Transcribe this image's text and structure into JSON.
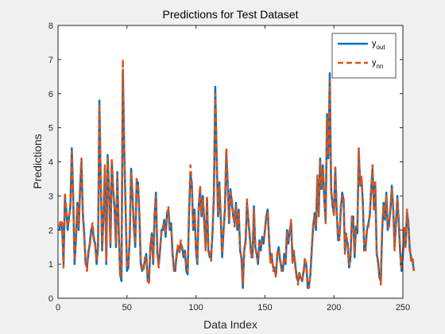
{
  "figure": {
    "background": "#f0f0f0",
    "axes_background": "#ffffff"
  },
  "chart_data": {
    "type": "line",
    "title": "Predictions for Test Dataset",
    "xlabel": "Data Index",
    "ylabel": "Predictions",
    "xlim": [
      0,
      250
    ],
    "ylim": [
      0,
      8
    ],
    "xticks": [
      0,
      50,
      100,
      150,
      200,
      250
    ],
    "yticks": [
      0,
      1,
      2,
      3,
      4,
      5,
      6,
      7,
      8
    ],
    "grid": false,
    "legend_position": "top-right",
    "series": [
      {
        "name_main": "y",
        "name_sub": "out",
        "color": "#0072bd",
        "style": "solid",
        "values": [
          2.0,
          2.2,
          2.1,
          1.0,
          2.9,
          2.6,
          2.0,
          2.4,
          2.7,
          4.4,
          3.0,
          1.0,
          1.7,
          2.8,
          2.0,
          3.2,
          4.0,
          2.5,
          1.9,
          1.0,
          0.9,
          1.3,
          1.6,
          2.0,
          2.1,
          1.7,
          1.6,
          1.0,
          1.5,
          5.8,
          3.4,
          1.4,
          2.5,
          3.8,
          1.0,
          4.2,
          3.2,
          1.5,
          4.0,
          3.2,
          2.6,
          1.5,
          3.7,
          2.0,
          0.7,
          0.5,
          6.7,
          4.4,
          2.7,
          0.8,
          0.9,
          1.8,
          3.8,
          3.0,
          2.1,
          1.5,
          3.4,
          3.4,
          2.4,
          1.0,
          0.8,
          0.9,
          1.1,
          1.3,
          0.5,
          0.6,
          1.5,
          1.9,
          1.0,
          2.4,
          3.1,
          1.3,
          1.0,
          1.4,
          2.0,
          2.0,
          2.3,
          1.8,
          2.5,
          2.6,
          2.0,
          2.2,
          1.3,
          0.9,
          0.8,
          1.3,
          1.5,
          1.4,
          1.6,
          1.5,
          1.2,
          1.4,
          0.8,
          0.7,
          2.5,
          3.6,
          3.4,
          2.0,
          2.6,
          1.4,
          1.0,
          2.7,
          3.2,
          2.4,
          3.0,
          2.2,
          1.5,
          2.9,
          1.4,
          1.2,
          1.2,
          1.9,
          3.0,
          6.2,
          4.2,
          2.4,
          3.4,
          2.3,
          1.2,
          2.0,
          2.6,
          4.3,
          3.4,
          2.2,
          3.2,
          2.8,
          2.4,
          2.2,
          2.8,
          2.0,
          2.6,
          1.4,
          1.2,
          0.3,
          1.4,
          1.7,
          2.8,
          2.3,
          1.8,
          1.3,
          1.2,
          2.7,
          1.5,
          1.3,
          1.0,
          1.7,
          1.4,
          1.8,
          1.6,
          2.0,
          2.4,
          2.6,
          1.7,
          1.1,
          1.2,
          0.9,
          0.8,
          0.7,
          1.3,
          1.5,
          1.1,
          0.9,
          0.8,
          1.3,
          1.0,
          2.0,
          1.6,
          2.0,
          2.2,
          1.1,
          1.3,
          1.0,
          0.6,
          0.5,
          0.7,
          0.6,
          0.5,
          0.8,
          1.1,
          1.0,
          0.3,
          0.4,
          0.7,
          1.5,
          2.1,
          2.5,
          2.0,
          3.5,
          2.5,
          4.1,
          3.2,
          3.9,
          2.9,
          2.3,
          5.4,
          4.1,
          6.6,
          3.2,
          2.7,
          2.5,
          3.8,
          2.6,
          1.7,
          1.8,
          2.6,
          3.1,
          2.9,
          1.4,
          1.8,
          1.6,
          0.9,
          1.2,
          2.3,
          2.4,
          1.2,
          2.1,
          1.9,
          4.3,
          3.4,
          3.5,
          2.8,
          1.4,
          1.5,
          2.0,
          2.2,
          2.4,
          3.2,
          3.8,
          2.7,
          3.3,
          1.3,
          1.1,
          0.6,
          0.5,
          2.0,
          2.8,
          2.3,
          3.1,
          2.0,
          2.2,
          2.6,
          3.3,
          2.6,
          1.5,
          2.2,
          3.0,
          2.2,
          1.4,
          0.8,
          1.3,
          2.0,
          1.6,
          2.5,
          2.2,
          1.4,
          1.2,
          1.1,
          0.8
        ]
      },
      {
        "name_main": "y",
        "name_sub": "nn",
        "color": "#d95319",
        "style": "dashed",
        "values": [
          2.1,
          2.3,
          2.2,
          0.9,
          3.1,
          2.5,
          2.1,
          2.3,
          2.8,
          4.3,
          2.9,
          1.1,
          1.8,
          2.7,
          2.1,
          3.3,
          4.1,
          2.4,
          1.8,
          1.1,
          0.8,
          1.4,
          1.5,
          1.9,
          2.2,
          1.8,
          1.5,
          1.1,
          1.4,
          5.7,
          3.3,
          1.5,
          2.4,
          3.9,
          1.1,
          4.1,
          3.1,
          1.6,
          4.1,
          3.1,
          2.7,
          1.6,
          3.6,
          2.1,
          0.8,
          0.6,
          7.0,
          4.3,
          2.6,
          0.9,
          1.0,
          1.7,
          3.7,
          3.1,
          2.0,
          1.6,
          3.5,
          3.3,
          2.5,
          1.1,
          0.9,
          0.8,
          1.2,
          1.2,
          0.6,
          0.4,
          1.6,
          1.8,
          1.1,
          2.5,
          3.0,
          1.4,
          0.9,
          1.5,
          1.9,
          2.1,
          2.2,
          1.9,
          2.4,
          2.7,
          2.1,
          2.1,
          1.4,
          0.8,
          0.9,
          1.2,
          1.6,
          1.3,
          1.7,
          1.4,
          1.3,
          1.3,
          0.9,
          0.8,
          2.6,
          3.9,
          3.3,
          2.1,
          2.5,
          1.5,
          1.1,
          2.6,
          3.3,
          2.5,
          2.9,
          2.3,
          1.4,
          3.0,
          1.5,
          1.3,
          1.1,
          2.0,
          3.1,
          6.0,
          4.1,
          2.5,
          3.3,
          2.4,
          1.3,
          1.9,
          2.7,
          4.4,
          3.3,
          2.3,
          3.1,
          2.9,
          2.5,
          2.1,
          2.7,
          2.1,
          2.5,
          1.5,
          1.1,
          0.4,
          1.5,
          1.6,
          2.9,
          2.2,
          1.9,
          1.2,
          1.3,
          2.6,
          1.6,
          1.2,
          1.1,
          1.6,
          1.5,
          1.7,
          1.7,
          1.9,
          2.5,
          2.5,
          1.8,
          1.0,
          1.3,
          0.8,
          0.9,
          0.6,
          1.4,
          1.4,
          1.2,
          0.8,
          0.9,
          1.2,
          1.1,
          1.9,
          1.7,
          1.9,
          2.3,
          1.0,
          1.4,
          0.9,
          0.7,
          0.4,
          0.8,
          0.5,
          0.6,
          0.7,
          1.2,
          0.9,
          0.4,
          0.3,
          0.8,
          1.4,
          2.2,
          2.4,
          2.1,
          3.6,
          2.4,
          4.0,
          3.3,
          3.8,
          3.0,
          2.2,
          5.3,
          4.2,
          6.4,
          3.1,
          2.8,
          2.4,
          3.9,
          2.5,
          1.8,
          1.7,
          2.7,
          3.0,
          3.0,
          1.3,
          1.9,
          1.5,
          1.0,
          1.1,
          2.4,
          2.3,
          1.3,
          2.0,
          2.0,
          4.4,
          3.3,
          3.6,
          2.7,
          1.5,
          1.4,
          2.1,
          2.1,
          2.5,
          3.1,
          3.9,
          2.6,
          3.4,
          1.4,
          1.0,
          0.7,
          0.4,
          2.1,
          2.7,
          2.4,
          3.0,
          2.1,
          2.1,
          2.7,
          3.2,
          2.7,
          1.4,
          2.3,
          2.9,
          2.3,
          1.3,
          0.9,
          1.2,
          2.1,
          1.5,
          2.6,
          2.1,
          1.5,
          1.1,
          1.2,
          0.8
        ]
      }
    ]
  }
}
